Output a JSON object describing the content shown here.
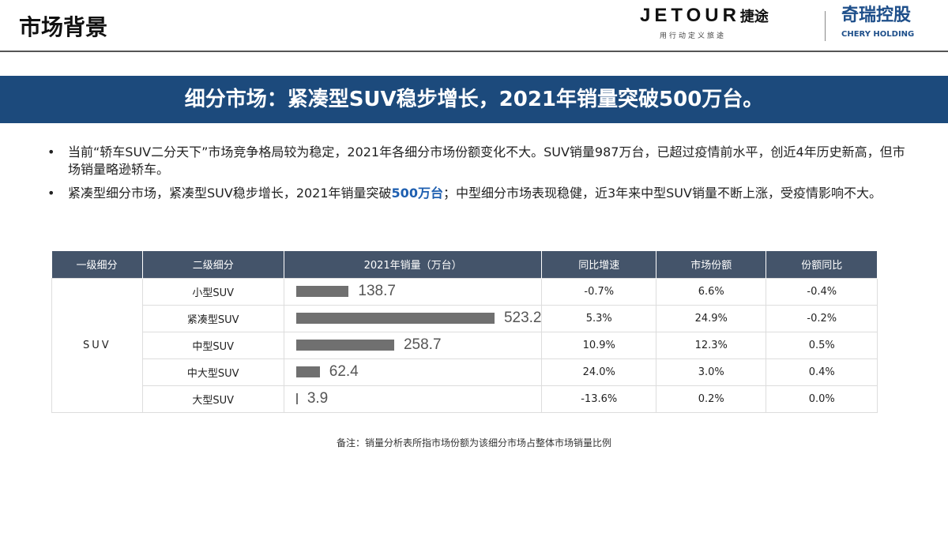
{
  "header": {
    "title": "市场背景",
    "logo_jetour": "JETOUR",
    "logo_jetour_cn": "捷途",
    "slogan": "用行动定义旅途",
    "logo_chery": "奇瑞控股",
    "logo_chery_en": "CHERY HOLDING"
  },
  "banner": "细分市场：紧凑型SUV稳步增长，2021年销量突破500万台。",
  "bullets": [
    {
      "text": "当前“轿车SUV二分天下”市场竞争格局较为稳定，2021年各细分市场份额变化不大。SUV销量987万台，已超过疫情前水平，创近4年历史新高，但市场销量略逊轿车。"
    },
    {
      "pre": "紧凑型细分市场，紧凑型SUV稳步增长，2021年销量突破",
      "highlight": "500万台",
      "post": "；中型细分市场表现稳健，近3年来中型SUV销量不断上涨，受疫情影响不大。"
    }
  ],
  "table": {
    "headers": [
      "一级细分",
      "二级细分",
      "2021年销量（万台）",
      "同比增速",
      "市场份额",
      "份额同比"
    ],
    "group": "SUV",
    "rows": [
      {
        "name": "小型SUV",
        "sales": "138.7",
        "value": 138.7,
        "yoy": "-0.7%",
        "share": "6.6%",
        "share_yoy": "-0.4%"
      },
      {
        "name": "紧凑型SUV",
        "sales": "523.2",
        "value": 523.2,
        "yoy": "5.3%",
        "share": "24.9%",
        "share_yoy": "-0.2%"
      },
      {
        "name": "中型SUV",
        "sales": "258.7",
        "value": 258.7,
        "yoy": "10.9%",
        "share": "12.3%",
        "share_yoy": "0.5%"
      },
      {
        "name": "中大型SUV",
        "sales": "62.4",
        "value": 62.4,
        "yoy": "24.0%",
        "share": "3.0%",
        "share_yoy": "0.4%"
      },
      {
        "name": "大型SUV",
        "sales": "3.9",
        "value": 3.9,
        "yoy": "-13.6%",
        "share": "0.2%",
        "share_yoy": "0.0%"
      }
    ]
  },
  "note": "备注：销量分析表所指市场份额为该细分市场占整体市场销量比例"
}
